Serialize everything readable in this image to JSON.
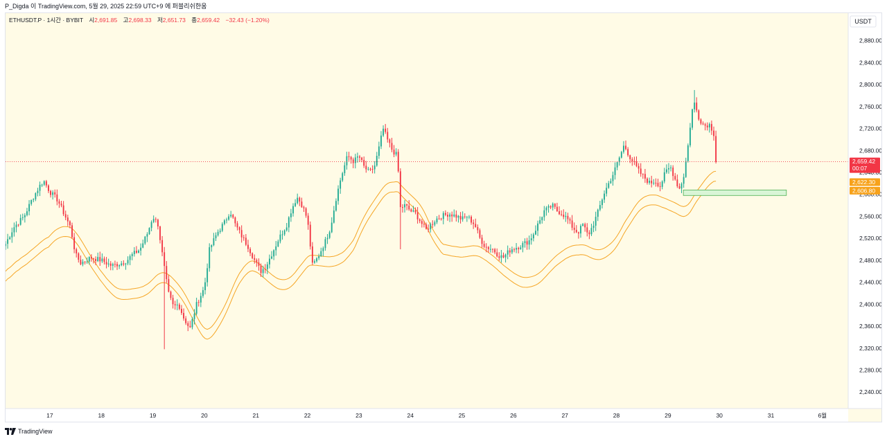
{
  "header": {
    "author_line": "P_Digda 이 TradingView.com, 5월 29, 2025 22:59 UTC+9 에 퍼블리쉬한움"
  },
  "footer": {
    "brand": "TradingView"
  },
  "chart_data": {
    "type": "candlestick",
    "legend": {
      "symbol": "ETHUSDT.P · 1시간 · BYBIT",
      "open_label": "시",
      "open": "2,691.85",
      "high_label": "고",
      "high": "2,698.33",
      "low_label": "저",
      "low": "2,651.73",
      "close_label": "종",
      "close": "2,659.42",
      "change": "−32.43 (−1.20%)"
    },
    "currency": "USDT",
    "ylim": [
      2210,
      2930
    ],
    "y_ticks": [
      "2,880.00",
      "2,840.00",
      "2,800.00",
      "2,760.00",
      "2,720.00",
      "2,680.00",
      "2,640.00",
      "2,600.00",
      "2,560.00",
      "2,520.00",
      "2,480.00",
      "2,440.00",
      "2,400.00",
      "2,360.00",
      "2,320.00",
      "2,280.00",
      "2,240.00"
    ],
    "y_tick_values": [
      2880,
      2840,
      2800,
      2760,
      2720,
      2680,
      2640,
      2600,
      2560,
      2520,
      2480,
      2440,
      2400,
      2360,
      2320,
      2280,
      2240
    ],
    "x_ticks": [
      "17",
      "18",
      "19",
      "20",
      "21",
      "22",
      "23",
      "24",
      "25",
      "26",
      "27",
      "28",
      "29",
      "30",
      "31",
      "6월"
    ],
    "x_tick_days": [
      17,
      18,
      19,
      20,
      21,
      22,
      23,
      24,
      25,
      26,
      27,
      28,
      29,
      30,
      31,
      32
    ],
    "x_range_days": [
      16.14,
      32.5
    ],
    "price_labels": [
      {
        "text": "2,659.42",
        "sub": "00:07",
        "value": 2659.42,
        "color": "#f23645"
      },
      {
        "text": "2,622.30",
        "value": 2622.3,
        "color": "#f7a21b"
      },
      {
        "text": "2,606.80",
        "value": 2606.8,
        "color": "#f7a21b"
      }
    ],
    "current_price": 2659.42,
    "zone": {
      "day_start": 29.3,
      "day_end": 31.3,
      "price_top": 2608,
      "price_bottom": 2598
    },
    "anchors": [
      [
        16.14,
        2510
      ],
      [
        16.3,
        2540
      ],
      [
        16.5,
        2560
      ],
      [
        16.65,
        2590
      ],
      [
        16.8,
        2615
      ],
      [
        16.88,
        2625
      ],
      [
        17.0,
        2605
      ],
      [
        17.15,
        2590
      ],
      [
        17.3,
        2560
      ],
      [
        17.4,
        2540
      ],
      [
        17.5,
        2490
      ],
      [
        17.6,
        2475
      ],
      [
        17.8,
        2485
      ],
      [
        18.0,
        2480
      ],
      [
        18.2,
        2470
      ],
      [
        18.4,
        2475
      ],
      [
        18.5,
        2480
      ],
      [
        18.6,
        2490
      ],
      [
        18.75,
        2500
      ],
      [
        18.9,
        2530
      ],
      [
        19.0,
        2560
      ],
      [
        19.1,
        2545
      ],
      [
        19.2,
        2480
      ],
      [
        19.3,
        2420
      ],
      [
        19.4,
        2395
      ],
      [
        19.5,
        2400
      ],
      [
        19.6,
        2375
      ],
      [
        19.72,
        2355
      ],
      [
        19.85,
        2400
      ],
      [
        20.0,
        2430
      ],
      [
        20.1,
        2500
      ],
      [
        20.25,
        2530
      ],
      [
        20.4,
        2550
      ],
      [
        20.5,
        2570
      ],
      [
        20.6,
        2545
      ],
      [
        20.75,
        2520
      ],
      [
        20.85,
        2505
      ],
      [
        21.0,
        2475
      ],
      [
        21.1,
        2460
      ],
      [
        21.2,
        2470
      ],
      [
        21.3,
        2490
      ],
      [
        21.45,
        2520
      ],
      [
        21.6,
        2545
      ],
      [
        21.7,
        2575
      ],
      [
        21.8,
        2595
      ],
      [
        21.9,
        2580
      ],
      [
        22.0,
        2555
      ],
      [
        22.1,
        2470
      ],
      [
        22.2,
        2485
      ],
      [
        22.35,
        2515
      ],
      [
        22.45,
        2540
      ],
      [
        22.55,
        2590
      ],
      [
        22.65,
        2630
      ],
      [
        22.78,
        2670
      ],
      [
        22.9,
        2660
      ],
      [
        23.0,
        2670
      ],
      [
        23.1,
        2650
      ],
      [
        23.2,
        2640
      ],
      [
        23.3,
        2650
      ],
      [
        23.38,
        2680
      ],
      [
        23.47,
        2720
      ],
      [
        23.55,
        2700
      ],
      [
        23.65,
        2680
      ],
      [
        23.75,
        2670
      ],
      [
        23.8,
        2575
      ],
      [
        23.9,
        2580
      ],
      [
        24.0,
        2570
      ],
      [
        24.1,
        2565
      ],
      [
        24.2,
        2550
      ],
      [
        24.3,
        2535
      ],
      [
        24.4,
        2545
      ],
      [
        24.5,
        2555
      ],
      [
        24.6,
        2560
      ],
      [
        24.75,
        2565
      ],
      [
        24.9,
        2560
      ],
      [
        25.0,
        2555
      ],
      [
        25.1,
        2560
      ],
      [
        25.25,
        2545
      ],
      [
        25.35,
        2520
      ],
      [
        25.45,
        2505
      ],
      [
        25.6,
        2500
      ],
      [
        25.7,
        2490
      ],
      [
        25.8,
        2485
      ],
      [
        25.95,
        2500
      ],
      [
        26.1,
        2505
      ],
      [
        26.2,
        2510
      ],
      [
        26.3,
        2515
      ],
      [
        26.4,
        2530
      ],
      [
        26.5,
        2550
      ],
      [
        26.6,
        2570
      ],
      [
        26.7,
        2575
      ],
      [
        26.75,
        2580
      ],
      [
        26.85,
        2570
      ],
      [
        26.95,
        2565
      ],
      [
        27.05,
        2555
      ],
      [
        27.15,
        2540
      ],
      [
        27.25,
        2530
      ],
      [
        27.35,
        2545
      ],
      [
        27.45,
        2525
      ],
      [
        27.55,
        2545
      ],
      [
        27.65,
        2570
      ],
      [
        27.75,
        2600
      ],
      [
        27.85,
        2620
      ],
      [
        27.95,
        2640
      ],
      [
        28.05,
        2665
      ],
      [
        28.15,
        2690
      ],
      [
        28.25,
        2670
      ],
      [
        28.35,
        2655
      ],
      [
        28.45,
        2640
      ],
      [
        28.55,
        2630
      ],
      [
        28.65,
        2620
      ],
      [
        28.75,
        2625
      ],
      [
        28.85,
        2615
      ],
      [
        28.95,
        2640
      ],
      [
        29.05,
        2650
      ],
      [
        29.15,
        2625
      ],
      [
        29.22,
        2610
      ],
      [
        29.3,
        2630
      ],
      [
        29.38,
        2680
      ],
      [
        29.45,
        2740
      ],
      [
        29.5,
        2770
      ],
      [
        29.6,
        2740
      ],
      [
        29.7,
        2725
      ],
      [
        29.8,
        2728
      ],
      [
        29.88,
        2715
      ],
      [
        29.93,
        2692
      ],
      [
        29.96,
        2659.42
      ]
    ]
  }
}
